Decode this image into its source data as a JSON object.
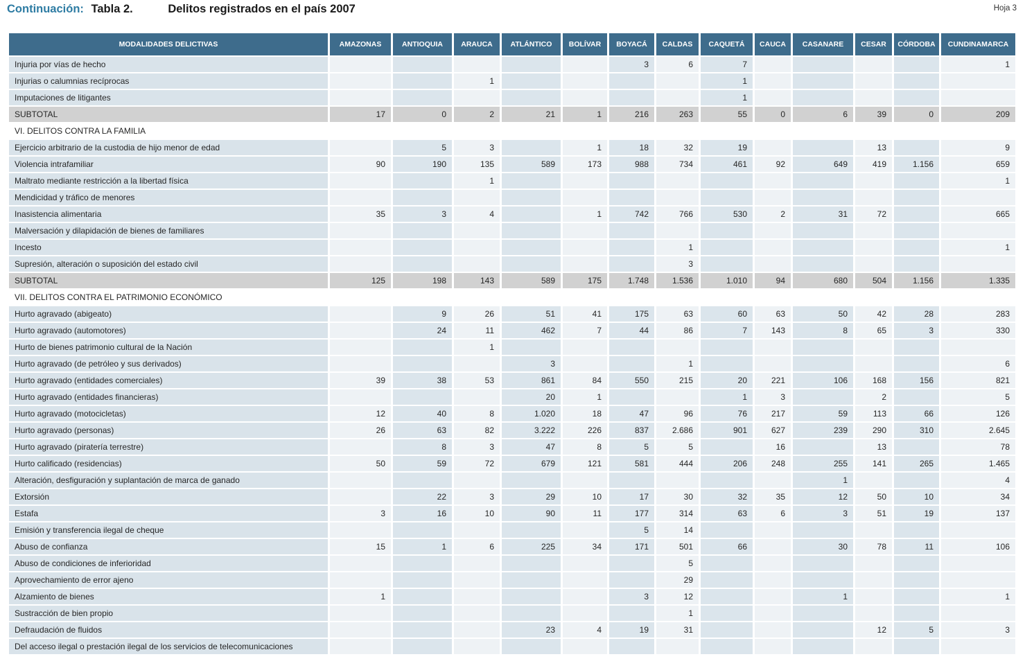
{
  "page": {
    "continuation_label": "Continuación:",
    "table_label": "Tabla 2.",
    "title": "Delitos registrados en el país 2007",
    "sheet_label": "Hoja 3"
  },
  "colors": {
    "header_bg": "#3e6c8c",
    "accent_title": "#2e7ca3",
    "label_column_bg": "#d9e3ea",
    "column_light_bg": "#eef2f5",
    "column_dark_bg": "#dbe5ec",
    "subtotal_bg": "#d1d1d1"
  },
  "table": {
    "header": [
      "MODALIDADES DELICTIVAS",
      "AMAZONAS",
      "ANTIOQUIA",
      "ARAUCA",
      "ATLÁNTICO",
      "BOLÍVAR",
      "BOYACÁ",
      "CALDAS",
      "CAQUETÁ",
      "CAUCA",
      "CASANARE",
      "CESAR",
      "CÓRDOBA",
      "CUNDINAMARCA"
    ],
    "rows": [
      {
        "type": "data",
        "label": "Injuria por vías de hecho",
        "values": [
          "",
          "",
          "",
          "",
          "",
          "3",
          "6",
          "7",
          "",
          "",
          "",
          "",
          "1"
        ]
      },
      {
        "type": "data",
        "label": "Injurias o calumnias recíprocas",
        "values": [
          "",
          "",
          "1",
          "",
          "",
          "",
          "",
          "1",
          "",
          "",
          "",
          "",
          ""
        ]
      },
      {
        "type": "data",
        "label": "Imputaciones de litigantes",
        "values": [
          "",
          "",
          "",
          "",
          "",
          "",
          "",
          "1",
          "",
          "",
          "",
          "",
          ""
        ]
      },
      {
        "type": "subtotal",
        "label": "SUBTOTAL",
        "values": [
          "17",
          "0",
          "2",
          "21",
          "1",
          "216",
          "263",
          "55",
          "0",
          "6",
          "39",
          "0",
          "209"
        ]
      },
      {
        "type": "section",
        "label": "VI. DELITOS CONTRA LA FAMILIA",
        "values": []
      },
      {
        "type": "data",
        "label": "Ejercicio arbitrario de la custodia de hijo menor de edad",
        "values": [
          "",
          "5",
          "3",
          "",
          "1",
          "18",
          "32",
          "19",
          "",
          "",
          "13",
          "",
          "9"
        ]
      },
      {
        "type": "data",
        "label": "Violencia intrafamiliar",
        "values": [
          "90",
          "190",
          "135",
          "589",
          "173",
          "988",
          "734",
          "461",
          "92",
          "649",
          "419",
          "1.156",
          "659"
        ]
      },
      {
        "type": "data",
        "label": "Maltrato mediante restricción a la libertad física",
        "values": [
          "",
          "",
          "1",
          "",
          "",
          "",
          "",
          "",
          "",
          "",
          "",
          "",
          "1"
        ]
      },
      {
        "type": "data",
        "label": "Mendicidad y tráfico de menores",
        "values": [
          "",
          "",
          "",
          "",
          "",
          "",
          "",
          "",
          "",
          "",
          "",
          "",
          ""
        ]
      },
      {
        "type": "data",
        "label": "Inasistencia alimentaria",
        "values": [
          "35",
          "3",
          "4",
          "",
          "1",
          "742",
          "766",
          "530",
          "2",
          "31",
          "72",
          "",
          "665"
        ]
      },
      {
        "type": "data",
        "label": "Malversación y dilapidación de bienes de familiares",
        "values": [
          "",
          "",
          "",
          "",
          "",
          "",
          "",
          "",
          "",
          "",
          "",
          "",
          ""
        ]
      },
      {
        "type": "data",
        "label": "Incesto",
        "values": [
          "",
          "",
          "",
          "",
          "",
          "",
          "1",
          "",
          "",
          "",
          "",
          "",
          "1"
        ]
      },
      {
        "type": "data",
        "label": "Supresión, alteración o suposición del estado civil",
        "values": [
          "",
          "",
          "",
          "",
          "",
          "",
          "3",
          "",
          "",
          "",
          "",
          "",
          ""
        ]
      },
      {
        "type": "subtotal",
        "label": "SUBTOTAL",
        "values": [
          "125",
          "198",
          "143",
          "589",
          "175",
          "1.748",
          "1.536",
          "1.010",
          "94",
          "680",
          "504",
          "1.156",
          "1.335"
        ]
      },
      {
        "type": "section",
        "label": "VII. DELITOS CONTRA EL PATRIMONIO ECONÓMICO",
        "values": []
      },
      {
        "type": "data",
        "label": "Hurto agravado (abigeato)",
        "values": [
          "",
          "9",
          "26",
          "51",
          "41",
          "175",
          "63",
          "60",
          "63",
          "50",
          "42",
          "28",
          "283"
        ]
      },
      {
        "type": "data",
        "label": "Hurto agravado (automotores)",
        "values": [
          "",
          "24",
          "11",
          "462",
          "7",
          "44",
          "86",
          "7",
          "143",
          "8",
          "65",
          "3",
          "330"
        ]
      },
      {
        "type": "data",
        "label": "Hurto de bienes patrimonio cultural de la Nación",
        "values": [
          "",
          "",
          "1",
          "",
          "",
          "",
          "",
          "",
          "",
          "",
          "",
          "",
          ""
        ]
      },
      {
        "type": "data",
        "label": "Hurto agravado (de petróleo y sus derivados)",
        "values": [
          "",
          "",
          "",
          "3",
          "",
          "",
          "1",
          "",
          "",
          "",
          "",
          "",
          "6"
        ]
      },
      {
        "type": "data",
        "label": "Hurto agravado (entidades comerciales)",
        "values": [
          "39",
          "38",
          "53",
          "861",
          "84",
          "550",
          "215",
          "20",
          "221",
          "106",
          "168",
          "156",
          "821"
        ]
      },
      {
        "type": "data",
        "label": "Hurto agravado (entidades financieras)",
        "values": [
          "",
          "",
          "",
          "20",
          "1",
          "",
          "",
          "1",
          "3",
          "",
          "2",
          "",
          "5"
        ]
      },
      {
        "type": "data",
        "label": "Hurto agravado (motocicletas)",
        "values": [
          "12",
          "40",
          "8",
          "1.020",
          "18",
          "47",
          "96",
          "76",
          "217",
          "59",
          "113",
          "66",
          "126"
        ]
      },
      {
        "type": "data",
        "label": "Hurto agravado (personas)",
        "values": [
          "26",
          "63",
          "82",
          "3.222",
          "226",
          "837",
          "2.686",
          "901",
          "627",
          "239",
          "290",
          "310",
          "2.645"
        ]
      },
      {
        "type": "data",
        "label": "Hurto agravado (piratería terrestre)",
        "values": [
          "",
          "8",
          "3",
          "47",
          "8",
          "5",
          "5",
          "",
          "16",
          "",
          "13",
          "",
          "78"
        ]
      },
      {
        "type": "data",
        "label": "Hurto calificado (residencias)",
        "values": [
          "50",
          "59",
          "72",
          "679",
          "121",
          "581",
          "444",
          "206",
          "248",
          "255",
          "141",
          "265",
          "1.465"
        ]
      },
      {
        "type": "data",
        "label": "Alteración, desfiguración y suplantación de marca de ganado",
        "values": [
          "",
          "",
          "",
          "",
          "",
          "",
          "",
          "",
          "",
          "1",
          "",
          "",
          "4"
        ]
      },
      {
        "type": "data",
        "label": "Extorsión",
        "values": [
          "",
          "22",
          "3",
          "29",
          "10",
          "17",
          "30",
          "32",
          "35",
          "12",
          "50",
          "10",
          "34"
        ]
      },
      {
        "type": "data",
        "label": "Estafa",
        "values": [
          "3",
          "16",
          "10",
          "90",
          "11",
          "177",
          "314",
          "63",
          "6",
          "3",
          "51",
          "19",
          "137"
        ]
      },
      {
        "type": "data",
        "label": "Emisión y transferencia ilegal de cheque",
        "values": [
          "",
          "",
          "",
          "",
          "",
          "5",
          "14",
          "",
          "",
          "",
          "",
          "",
          ""
        ]
      },
      {
        "type": "data",
        "label": "Abuso de confianza",
        "values": [
          "15",
          "1",
          "6",
          "225",
          "34",
          "171",
          "501",
          "66",
          "",
          "30",
          "78",
          "11",
          "106"
        ]
      },
      {
        "type": "data",
        "label": "Abuso de condiciones de inferioridad",
        "values": [
          "",
          "",
          "",
          "",
          "",
          "",
          "5",
          "",
          "",
          "",
          "",
          "",
          ""
        ]
      },
      {
        "type": "data",
        "label": "Aprovechamiento de error ajeno",
        "values": [
          "",
          "",
          "",
          "",
          "",
          "",
          "29",
          "",
          "",
          "",
          "",
          "",
          ""
        ]
      },
      {
        "type": "data",
        "label": "Alzamiento de bienes",
        "values": [
          "1",
          "",
          "",
          "",
          "",
          "3",
          "12",
          "",
          "",
          "1",
          "",
          "",
          "1"
        ]
      },
      {
        "type": "data",
        "label": "Sustracción de bien propio",
        "values": [
          "",
          "",
          "",
          "",
          "",
          "",
          "1",
          "",
          "",
          "",
          "",
          "",
          ""
        ]
      },
      {
        "type": "data",
        "label": "Defraudación de fluidos",
        "values": [
          "",
          "",
          "",
          "23",
          "4",
          "19",
          "31",
          "",
          "",
          "",
          "12",
          "5",
          "3"
        ]
      },
      {
        "type": "data",
        "label": "Del acceso ilegal o prestación ilegal de los servicios de telecomunicaciones",
        "values": [
          "",
          "",
          "",
          "",
          "",
          "",
          "",
          "",
          "",
          "",
          "",
          "",
          ""
        ]
      }
    ]
  }
}
